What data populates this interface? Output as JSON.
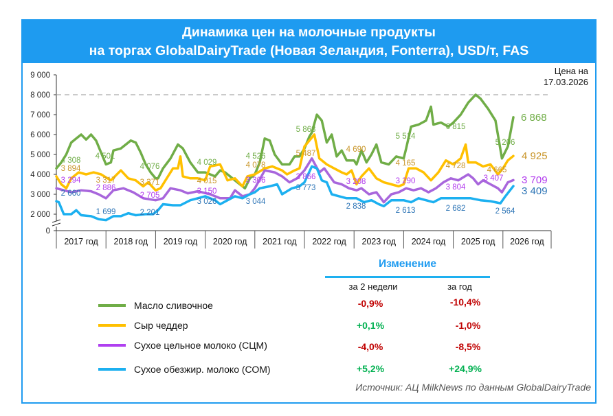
{
  "title_line1": "Динамика цен на молочные продукты",
  "title_line2": "на торгах GlobalDairyTrade (Новая Зеландия, Fonterra), USD/т, FAS",
  "price_note_line1": "Цена на",
  "price_note_line2": "17.03.2026",
  "colors": {
    "frame": "#1e9bf0",
    "butter": "#70ad47",
    "cheese": "#ffc000",
    "wmp": "#b066e6",
    "smp": "#1cb0f0",
    "negative": "#c00000",
    "positive": "#00b050"
  },
  "chart_data": {
    "type": "line",
    "ylim": [
      0,
      9000
    ],
    "y_ticks": [
      "0",
      "2 000",
      "3 000",
      "4 000",
      "5 000",
      "6 000",
      "7 000",
      "8 000",
      "9 000"
    ],
    "y_tick_values": [
      0,
      2000,
      3000,
      4000,
      5000,
      6000,
      7000,
      8000,
      9000
    ],
    "axis_break": true,
    "reference_line": 8000,
    "x_categories": [
      "2017 год",
      "2018 год",
      "2019 год",
      "2020 год",
      "2021 год",
      "2022 год",
      "2023 год",
      "2024 год",
      "2025 год",
      "2026 год"
    ],
    "series": [
      {
        "name": "Масло сливочное",
        "key": "butter",
        "x": [
          2017.0,
          2017.1,
          2017.2,
          2017.3,
          2017.4,
          2017.5,
          2017.6,
          2017.7,
          2017.8,
          2017.9,
          2018.0,
          2018.1,
          2018.15,
          2018.3,
          2018.5,
          2018.6,
          2018.7,
          2018.8,
          2018.9,
          2019.0,
          2019.05,
          2019.15,
          2019.3,
          2019.45,
          2019.55,
          2019.7,
          2019.85,
          2020.0,
          2020.1,
          2020.2,
          2020.3,
          2020.4,
          2020.5,
          2020.6,
          2020.7,
          2020.8,
          2020.9,
          2021.0,
          2021.1,
          2021.2,
          2021.3,
          2021.4,
          2021.55,
          2021.7,
          2021.8,
          2021.9,
          2022.0,
          2022.1,
          2022.15,
          2022.25,
          2022.35,
          2022.45,
          2022.55,
          2022.65,
          2022.75,
          2022.85,
          2023.0,
          2023.05,
          2023.15,
          2023.25,
          2023.35,
          2023.45,
          2023.55,
          2023.7,
          2023.85,
          2024.0,
          2024.05,
          2024.15,
          2024.3,
          2024.45,
          2024.55,
          2024.6,
          2024.75,
          2024.9,
          2025.0,
          2025.15,
          2025.3,
          2025.45,
          2025.55,
          2025.7,
          2025.85,
          2025.98,
          2026.1,
          2026.21
        ],
        "values": [
          4300,
          4600,
          5000,
          5600,
          5800,
          6000,
          5750,
          6000,
          5700,
          5100,
          4500,
          4600,
          5200,
          5300,
          5700,
          5600,
          5100,
          4500,
          4100,
          3800,
          3800,
          4300,
          4800,
          5500,
          5300,
          4600,
          4100,
          4100,
          4000,
          3900,
          4200,
          4100,
          3900,
          3700,
          3500,
          3300,
          3800,
          4000,
          4600,
          5800,
          5700,
          5000,
          4500,
          4500,
          4900,
          4900,
          5300,
          5900,
          6100,
          7000,
          6700,
          5600,
          6000,
          4900,
          5200,
          4700,
          4700,
          4500,
          5200,
          4600,
          5000,
          5500,
          4600,
          4500,
          4900,
          4800,
          5300,
          6400,
          6500,
          6700,
          7400,
          6500,
          6600,
          6400,
          6600,
          7000,
          7600,
          8000,
          7800,
          7300,
          6700,
          4800,
          5400,
          6868
        ]
      },
      {
        "name": "Сыр чеддер",
        "key": "cheese",
        "x": [
          2017.0,
          2017.1,
          2017.2,
          2017.3,
          2017.45,
          2017.6,
          2017.75,
          2017.9,
          2018.1,
          2018.3,
          2018.45,
          2018.6,
          2018.75,
          2018.85,
          2019.0,
          2019.1,
          2019.2,
          2019.35,
          2019.45,
          2019.5,
          2019.55,
          2019.7,
          2019.85,
          2020.0,
          2020.1,
          2020.3,
          2020.45,
          2020.6,
          2020.75,
          2020.85,
          2021.0,
          2021.2,
          2021.35,
          2021.55,
          2021.65,
          2021.8,
          2021.9,
          2022.0,
          2022.1,
          2022.2,
          2022.3,
          2022.45,
          2022.6,
          2022.75,
          2022.85,
          2022.95,
          2023.05,
          2023.15,
          2023.3,
          2023.45,
          2023.6,
          2023.75,
          2023.9,
          2024.0,
          2024.1,
          2024.25,
          2024.4,
          2024.55,
          2024.7,
          2024.85,
          2025.0,
          2025.15,
          2025.25,
          2025.3,
          2025.45,
          2025.6,
          2025.75,
          2025.9,
          2026.0,
          2026.1,
          2026.21
        ],
        "values": [
          3900,
          3500,
          3300,
          3800,
          4100,
          4000,
          4100,
          4000,
          3700,
          4200,
          3800,
          3700,
          3400,
          3600,
          3200,
          3300,
          3700,
          4300,
          4300,
          4900,
          3900,
          3800,
          3800,
          3700,
          4400,
          4500,
          3700,
          3800,
          3400,
          3900,
          4000,
          4300,
          4400,
          4200,
          4000,
          4200,
          4300,
          5400,
          5700,
          6000,
          4800,
          4500,
          4300,
          4100,
          4000,
          4200,
          3500,
          3900,
          4300,
          3800,
          3600,
          3500,
          3400,
          3500,
          4300,
          4300,
          4100,
          3700,
          4100,
          4700,
          4500,
          4800,
          5500,
          4600,
          4600,
          4400,
          4500,
          4000,
          4300,
          4700,
          4925
        ]
      },
      {
        "name": "Сухое цельное молоко (СЦМ)",
        "key": "wmp",
        "x": [
          2017.0,
          2017.15,
          2017.3,
          2017.5,
          2017.7,
          2017.85,
          2018.0,
          2018.15,
          2018.35,
          2018.55,
          2018.75,
          2019.0,
          2019.15,
          2019.3,
          2019.5,
          2019.65,
          2019.85,
          2020.1,
          2020.3,
          2020.5,
          2020.6,
          2020.75,
          2020.9,
          2021.0,
          2021.2,
          2021.4,
          2021.55,
          2021.7,
          2021.85,
          2022.0,
          2022.15,
          2022.3,
          2022.4,
          2022.6,
          2022.75,
          2022.9,
          2023.05,
          2023.15,
          2023.3,
          2023.45,
          2023.6,
          2023.75,
          2023.9,
          2024.05,
          2024.2,
          2024.35,
          2024.5,
          2024.65,
          2024.8,
          2024.95,
          2025.1,
          2025.3,
          2025.4,
          2025.5,
          2025.6,
          2025.75,
          2025.9,
          2025.98,
          2026.1,
          2026.21
        ],
        "values": [
          3300,
          3200,
          3100,
          3200,
          3150,
          3000,
          2800,
          3200,
          3300,
          3100,
          2800,
          2700,
          2800,
          3300,
          3200,
          3050,
          3150,
          3000,
          2800,
          2800,
          3200,
          2900,
          3000,
          3300,
          4200,
          4100,
          3900,
          3600,
          3800,
          4200,
          4800,
          4100,
          4300,
          3600,
          3500,
          3300,
          3200,
          3300,
          3000,
          3100,
          2600,
          3000,
          3100,
          3300,
          3200,
          3300,
          3100,
          3300,
          3600,
          3800,
          3700,
          4000,
          3800,
          3500,
          3700,
          3500,
          3300,
          3100,
          3600,
          3709
        ]
      },
      {
        "name": "Сухое обезжир. молоко (СОМ)",
        "key": "smp",
        "x": [
          2017.0,
          2017.05,
          2017.15,
          2017.3,
          2017.4,
          2017.5,
          2017.7,
          2017.85,
          2018.0,
          2018.15,
          2018.3,
          2018.45,
          2018.6,
          2018.8,
          2018.95,
          2019.05,
          2019.15,
          2019.35,
          2019.5,
          2019.7,
          2019.85,
          2020.0,
          2020.2,
          2020.3,
          2020.45,
          2020.6,
          2020.75,
          2020.9,
          2021.0,
          2021.1,
          2021.3,
          2021.45,
          2021.55,
          2021.75,
          2021.9,
          2022.0,
          2022.15,
          2022.25,
          2022.35,
          2022.45,
          2022.55,
          2022.7,
          2022.85,
          2023.05,
          2023.2,
          2023.35,
          2023.5,
          2023.6,
          2023.75,
          2024.0,
          2024.15,
          2024.3,
          2024.45,
          2024.6,
          2024.75,
          2024.95,
          2025.15,
          2025.35,
          2025.55,
          2025.75,
          2025.95,
          2026.05,
          2026.21
        ],
        "values": [
          2650,
          2600,
          2000,
          2000,
          2200,
          1950,
          1900,
          1750,
          1700,
          1900,
          1900,
          2050,
          1950,
          2000,
          2000,
          2200,
          2500,
          2450,
          2450,
          2700,
          2800,
          2900,
          2700,
          2500,
          2700,
          2900,
          2800,
          3000,
          3100,
          3300,
          3400,
          3500,
          3000,
          3300,
          3400,
          3600,
          4400,
          4300,
          3700,
          3600,
          3000,
          2900,
          2800,
          2800,
          2600,
          2700,
          2500,
          2400,
          2700,
          2700,
          2600,
          2800,
          2700,
          2600,
          2800,
          2800,
          2800,
          2800,
          2700,
          2650,
          2550,
          2900,
          3409
        ]
      }
    ],
    "annotations": [
      {
        "series": "butter",
        "text": "4 308"
      },
      {
        "series": "butter",
        "text": "4 501"
      },
      {
        "series": "butter",
        "text": "4 076"
      },
      {
        "series": "butter",
        "text": "4 029"
      },
      {
        "series": "butter",
        "text": "4 526"
      },
      {
        "series": "butter",
        "text": "5 868"
      },
      {
        "series": "butter",
        "text": "5 514"
      },
      {
        "series": "butter",
        "text": "6 815"
      },
      {
        "series": "butter",
        "text": "5 206"
      },
      {
        "series": "butter",
        "text": "6 868",
        "final": true
      },
      {
        "series": "cheese",
        "text": "3 894"
      },
      {
        "series": "cheese",
        "text": "3 317"
      },
      {
        "series": "cheese",
        "text": "3 371"
      },
      {
        "series": "cheese",
        "text": "4 015"
      },
      {
        "series": "cheese",
        "text": "4 078"
      },
      {
        "series": "cheese",
        "text": "5 487"
      },
      {
        "series": "cheese",
        "text": "4 690"
      },
      {
        "series": "cheese",
        "text": "4 165"
      },
      {
        "series": "cheese",
        "text": "4 728"
      },
      {
        "series": "cheese",
        "text": "4 665"
      },
      {
        "series": "cheese",
        "text": "4 925",
        "final": true
      },
      {
        "series": "wmp",
        "text": "3 294"
      },
      {
        "series": "wmp",
        "text": "2 886"
      },
      {
        "series": "wmp",
        "text": "2 705"
      },
      {
        "series": "wmp",
        "text": "3 150"
      },
      {
        "series": "wmp",
        "text": "3 306"
      },
      {
        "series": "wmp",
        "text": "3 866"
      },
      {
        "series": "wmp",
        "text": "3 208"
      },
      {
        "series": "wmp",
        "text": "3 290"
      },
      {
        "series": "wmp",
        "text": "3 804"
      },
      {
        "series": "wmp",
        "text": "3 407"
      },
      {
        "series": "wmp",
        "text": "3 709",
        "final": true
      },
      {
        "series": "smp",
        "text": "2 660"
      },
      {
        "series": "smp",
        "text": "1 699"
      },
      {
        "series": "smp",
        "text": "2 201"
      },
      {
        "series": "smp",
        "text": "3 026"
      },
      {
        "series": "smp",
        "text": "3 044"
      },
      {
        "series": "smp",
        "text": "3 773"
      },
      {
        "series": "smp",
        "text": "2 838"
      },
      {
        "series": "smp",
        "text": "2 613"
      },
      {
        "series": "smp",
        "text": "2 682"
      },
      {
        "series": "smp",
        "text": "2 564"
      },
      {
        "series": "smp",
        "text": "3 409",
        "final": true
      }
    ]
  },
  "change": {
    "title": "Изменение",
    "col_2w": "за 2 недели",
    "col_year": "за год",
    "rows": [
      {
        "label": "Масло сливочное",
        "two_weeks": "-0,9%",
        "year": "-10,4%"
      },
      {
        "label": "Сыр чеддер",
        "two_weeks": "+0,1%",
        "year": "-1,0%"
      },
      {
        "label": "Сухое цельное молоко (СЦМ)",
        "two_weeks": "-4,0%",
        "year": "-8,5%"
      },
      {
        "label": "Сухое обезжир. молоко (СОМ)",
        "two_weeks": "+5,2%",
        "year": "+24,9%"
      }
    ]
  },
  "source": "Источник: АЦ MilkNews по данным GlobalDairyTrade"
}
